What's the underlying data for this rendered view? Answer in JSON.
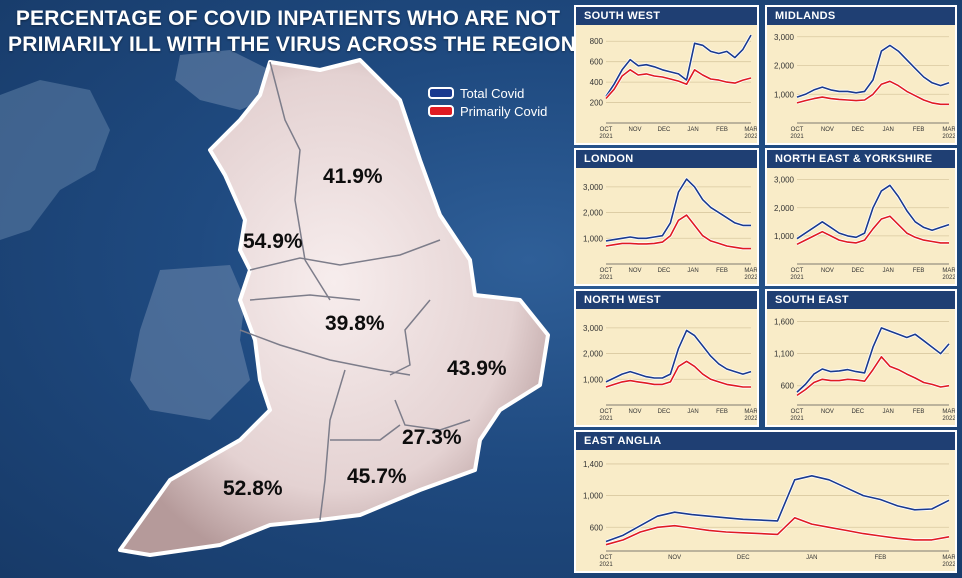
{
  "title_line1": "PERCENTAGE OF COVID INPATIENTS WHO ARE NOT",
  "title_line2": "PRIMARILY ILL WITH THE VIRUS ACROSS THE REGIONS",
  "legend": [
    {
      "label": "Total Covid",
      "color": "#1a3a8f"
    },
    {
      "label": "Primarily Covid",
      "color": "#e01b22"
    }
  ],
  "map_labels": [
    {
      "region": "North East & Yorkshire",
      "text": "41.9%"
    },
    {
      "region": "North West",
      "text": "54.9%"
    },
    {
      "region": "Midlands",
      "text": "39.8%"
    },
    {
      "region": "East Anglia",
      "text": "43.9%"
    },
    {
      "region": "London",
      "text": "27.3%"
    },
    {
      "region": "South West",
      "text": "52.8%"
    },
    {
      "region": "South East",
      "text": "45.7%"
    }
  ],
  "chart_data": [
    {
      "type": "line",
      "title": "SOUTH WEST",
      "ylim": [
        0,
        900
      ],
      "yticks": [
        "200",
        "400",
        "600",
        "800"
      ],
      "ytick_values": [
        200,
        400,
        600,
        800
      ],
      "xticks": [
        [
          "OCT",
          "2021"
        ],
        [
          "NOV",
          ""
        ],
        [
          "DEC",
          ""
        ],
        [
          "JAN",
          ""
        ],
        [
          "FEB",
          ""
        ],
        [
          "MAR",
          "2022"
        ]
      ],
      "series": [
        {
          "name": "Total Covid",
          "color": "#1a3a8f",
          "values": [
            260,
            380,
            520,
            620,
            560,
            570,
            550,
            520,
            500,
            480,
            420,
            780,
            760,
            700,
            680,
            700,
            640,
            720,
            860
          ]
        },
        {
          "name": "Primarily Covid",
          "color": "#e01b22",
          "values": [
            240,
            330,
            460,
            520,
            470,
            480,
            460,
            450,
            430,
            410,
            380,
            520,
            470,
            430,
            420,
            400,
            390,
            420,
            440
          ]
        }
      ]
    },
    {
      "type": "line",
      "title": "MIDLANDS",
      "ylim": [
        0,
        3200
      ],
      "yticks": [
        "1,000",
        "2,000",
        "3,000"
      ],
      "ytick_values": [
        1000,
        2000,
        3000
      ],
      "xticks": [
        [
          "OCT",
          "2021"
        ],
        [
          "NOV",
          ""
        ],
        [
          "DEC",
          ""
        ],
        [
          "JAN",
          ""
        ],
        [
          "FEB",
          ""
        ],
        [
          "MAR",
          "2022"
        ]
      ],
      "series": [
        {
          "name": "Total Covid",
          "color": "#1a3a8f",
          "values": [
            900,
            1000,
            1150,
            1250,
            1150,
            1100,
            1100,
            1050,
            1100,
            1500,
            2500,
            2700,
            2500,
            2200,
            1900,
            1600,
            1400,
            1300,
            1400
          ]
        },
        {
          "name": "Primarily Covid",
          "color": "#e01b22",
          "values": [
            700,
            780,
            850,
            900,
            850,
            820,
            800,
            780,
            800,
            1000,
            1350,
            1450,
            1300,
            1100,
            950,
            800,
            700,
            650,
            650
          ]
        }
      ]
    },
    {
      "type": "line",
      "title": "LONDON",
      "ylim": [
        0,
        3500
      ],
      "yticks": [
        "1,000",
        "2,000",
        "3,000"
      ],
      "ytick_values": [
        1000,
        2000,
        3000
      ],
      "xticks": [
        [
          "OCT",
          "2021"
        ],
        [
          "NOV",
          ""
        ],
        [
          "DEC",
          ""
        ],
        [
          "JAN",
          ""
        ],
        [
          "FEB",
          ""
        ],
        [
          "MAR",
          "2022"
        ]
      ],
      "series": [
        {
          "name": "Total Covid",
          "color": "#1a3a8f",
          "values": [
            900,
            950,
            1000,
            1050,
            1000,
            1000,
            1050,
            1100,
            1600,
            2800,
            3300,
            3000,
            2500,
            2200,
            2000,
            1800,
            1600,
            1500,
            1500
          ]
        },
        {
          "name": "Primarily Covid",
          "color": "#e01b22",
          "values": [
            700,
            750,
            800,
            800,
            780,
            780,
            800,
            850,
            1100,
            1700,
            1900,
            1500,
            1100,
            900,
            800,
            700,
            650,
            600,
            600
          ]
        }
      ]
    },
    {
      "type": "line",
      "title": "NORTH EAST & YORKSHIRE",
      "ylim": [
        0,
        3200
      ],
      "yticks": [
        "1,000",
        "2,000",
        "3,000"
      ],
      "ytick_values": [
        1000,
        2000,
        3000
      ],
      "xticks": [
        [
          "OCT",
          "2021"
        ],
        [
          "NOV",
          ""
        ],
        [
          "DEC",
          ""
        ],
        [
          "JAN",
          ""
        ],
        [
          "FEB",
          ""
        ],
        [
          "MAR",
          "2022"
        ]
      ],
      "series": [
        {
          "name": "Total Covid",
          "color": "#1a3a8f",
          "values": [
            900,
            1100,
            1300,
            1500,
            1300,
            1100,
            1000,
            950,
            1100,
            2000,
            2600,
            2800,
            2400,
            1900,
            1500,
            1300,
            1200,
            1300,
            1400
          ]
        },
        {
          "name": "Primarily Covid",
          "color": "#e01b22",
          "values": [
            700,
            850,
            1000,
            1150,
            1000,
            850,
            780,
            750,
            850,
            1250,
            1600,
            1700,
            1400,
            1100,
            950,
            850,
            800,
            750,
            750
          ]
        }
      ]
    },
    {
      "type": "line",
      "title": "NORTH WEST",
      "ylim": [
        0,
        3500
      ],
      "yticks": [
        "1,000",
        "2,000",
        "3,000"
      ],
      "ytick_values": [
        1000,
        2000,
        3000
      ],
      "xticks": [
        [
          "OCT",
          "2021"
        ],
        [
          "NOV",
          ""
        ],
        [
          "DEC",
          ""
        ],
        [
          "JAN",
          ""
        ],
        [
          "FEB",
          ""
        ],
        [
          "MAR",
          "2022"
        ]
      ],
      "series": [
        {
          "name": "Total Covid",
          "color": "#1a3a8f",
          "values": [
            900,
            1050,
            1200,
            1300,
            1200,
            1100,
            1050,
            1050,
            1200,
            2200,
            2900,
            2700,
            2300,
            1900,
            1600,
            1400,
            1300,
            1200,
            1300
          ]
        },
        {
          "name": "Primarily Covid",
          "color": "#e01b22",
          "values": [
            700,
            800,
            900,
            950,
            900,
            850,
            800,
            800,
            900,
            1500,
            1700,
            1500,
            1200,
            1000,
            900,
            800,
            750,
            700,
            700
          ]
        }
      ]
    },
    {
      "type": "line",
      "title": "SOUTH EAST",
      "ylim": [
        300,
        1700
      ],
      "yticks": [
        "600",
        "1,100",
        "1,600"
      ],
      "ytick_values": [
        600,
        1100,
        1600
      ],
      "xticks": [
        [
          "OCT",
          "2021"
        ],
        [
          "NOV",
          ""
        ],
        [
          "DEC",
          ""
        ],
        [
          "JAN",
          ""
        ],
        [
          "FEB",
          ""
        ],
        [
          "MAR",
          "2022"
        ]
      ],
      "series": [
        {
          "name": "Total Covid",
          "color": "#1a3a8f",
          "values": [
            500,
            620,
            780,
            860,
            820,
            830,
            850,
            820,
            800,
            1200,
            1500,
            1450,
            1400,
            1350,
            1400,
            1300,
            1200,
            1100,
            1250
          ]
        },
        {
          "name": "Primarily Covid",
          "color": "#e01b22",
          "values": [
            450,
            540,
            650,
            700,
            680,
            680,
            700,
            690,
            670,
            850,
            1050,
            900,
            850,
            780,
            720,
            650,
            620,
            580,
            600
          ]
        }
      ]
    },
    {
      "type": "line",
      "title": "EAST ANGLIA",
      "ylim": [
        300,
        1500
      ],
      "yticks": [
        "600",
        "1,000",
        "1,400"
      ],
      "ytick_values": [
        600,
        1000,
        1400
      ],
      "xticks": [
        [
          "OCT",
          "2021"
        ],
        [
          "NOV",
          ""
        ],
        [
          "DEC",
          ""
        ],
        [
          "JAN",
          ""
        ],
        [
          "FEB",
          ""
        ],
        [
          "MAR",
          "2022"
        ]
      ],
      "series": [
        {
          "name": "Total Covid",
          "color": "#1a3a8f",
          "values": [
            420,
            500,
            620,
            740,
            790,
            760,
            740,
            720,
            700,
            690,
            680,
            1200,
            1250,
            1200,
            1100,
            1000,
            950,
            870,
            820,
            830,
            940
          ]
        },
        {
          "name": "Primarily Covid",
          "color": "#e01b22",
          "values": [
            380,
            440,
            540,
            600,
            620,
            590,
            560,
            540,
            530,
            520,
            510,
            720,
            640,
            600,
            560,
            520,
            490,
            460,
            440,
            440,
            480
          ]
        }
      ]
    }
  ]
}
